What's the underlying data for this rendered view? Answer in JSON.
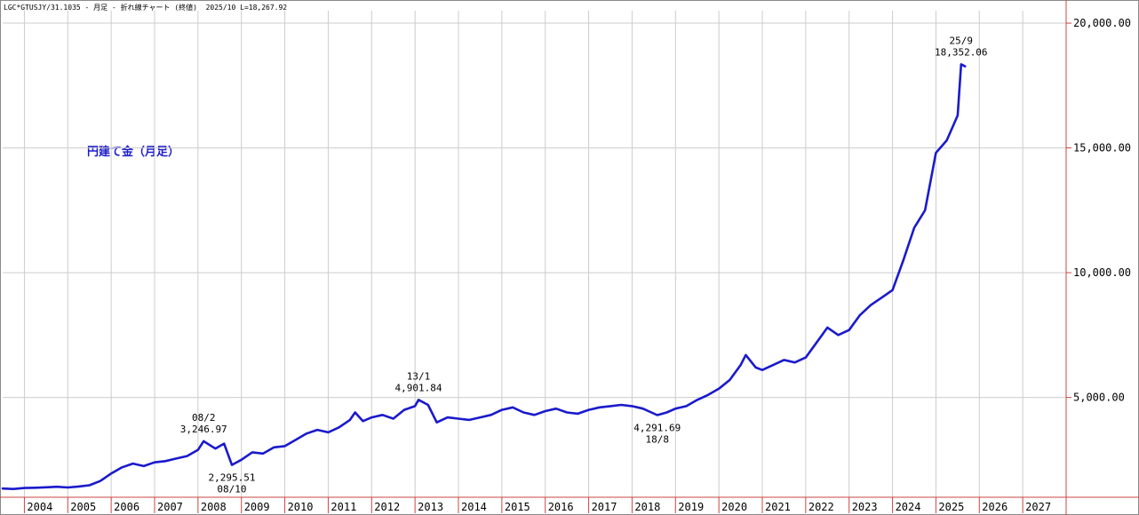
{
  "header": {
    "text": "LGC*GTUSJY/31.1035 - 月足 - 折れ線チャート (終値)  2025/10 L=18,267.92"
  },
  "chart_data": {
    "type": "line",
    "title": "円建て金（月足）",
    "xlabel": "",
    "ylabel": "",
    "x_range": [
      2003.5,
      2028.0
    ],
    "ylim": [
      1000,
      20500
    ],
    "y_ticks": [
      5000,
      10000,
      15000,
      20000
    ],
    "y_tick_labels": [
      "5,000.00",
      "10,000.00",
      "15,000.00",
      "20,000.00"
    ],
    "x_ticks": [
      "2004",
      "2005",
      "2006",
      "2007",
      "2008",
      "2009",
      "2010",
      "2011",
      "2012",
      "2013",
      "2014",
      "2015",
      "2016",
      "2017",
      "2018",
      "2019",
      "2020",
      "2021",
      "2022",
      "2023",
      "2024",
      "2025",
      "2026",
      "2027"
    ],
    "grid": true,
    "colors": {
      "line": "#1a1acc",
      "grid": "#cccccc",
      "xgrid_bottom": "#cc4444"
    },
    "series": [
      {
        "points": [
          [
            2003.5,
            1350
          ],
          [
            2003.75,
            1330
          ],
          [
            2004.0,
            1370
          ],
          [
            2004.25,
            1380
          ],
          [
            2004.5,
            1400
          ],
          [
            2004.75,
            1420
          ],
          [
            2005.0,
            1390
          ],
          [
            2005.25,
            1430
          ],
          [
            2005.5,
            1480
          ],
          [
            2005.75,
            1650
          ],
          [
            2006.0,
            1950
          ],
          [
            2006.25,
            2200
          ],
          [
            2006.5,
            2350
          ],
          [
            2006.75,
            2250
          ],
          [
            2007.0,
            2400
          ],
          [
            2007.25,
            2450
          ],
          [
            2007.5,
            2550
          ],
          [
            2007.75,
            2650
          ],
          [
            2008.0,
            2900
          ],
          [
            2008.13,
            3246.97
          ],
          [
            2008.4,
            2950
          ],
          [
            2008.6,
            3150
          ],
          [
            2008.78,
            2295.51
          ],
          [
            2009.0,
            2500
          ],
          [
            2009.25,
            2800
          ],
          [
            2009.5,
            2750
          ],
          [
            2009.75,
            3000
          ],
          [
            2010.0,
            3050
          ],
          [
            2010.25,
            3300
          ],
          [
            2010.5,
            3550
          ],
          [
            2010.75,
            3700
          ],
          [
            2011.0,
            3600
          ],
          [
            2011.25,
            3800
          ],
          [
            2011.5,
            4100
          ],
          [
            2011.62,
            4400
          ],
          [
            2011.8,
            4050
          ],
          [
            2012.0,
            4200
          ],
          [
            2012.25,
            4300
          ],
          [
            2012.5,
            4150
          ],
          [
            2012.75,
            4500
          ],
          [
            2013.0,
            4650
          ],
          [
            2013.08,
            4901.84
          ],
          [
            2013.3,
            4700
          ],
          [
            2013.5,
            4000
          ],
          [
            2013.75,
            4200
          ],
          [
            2014.0,
            4150
          ],
          [
            2014.25,
            4100
          ],
          [
            2014.5,
            4200
          ],
          [
            2014.75,
            4300
          ],
          [
            2015.0,
            4500
          ],
          [
            2015.25,
            4600
          ],
          [
            2015.5,
            4400
          ],
          [
            2015.75,
            4300
          ],
          [
            2016.0,
            4450
          ],
          [
            2016.25,
            4550
          ],
          [
            2016.5,
            4400
          ],
          [
            2016.75,
            4350
          ],
          [
            2017.0,
            4500
          ],
          [
            2017.25,
            4600
          ],
          [
            2017.5,
            4650
          ],
          [
            2017.75,
            4700
          ],
          [
            2018.0,
            4650
          ],
          [
            2018.25,
            4550
          ],
          [
            2018.58,
            4291.69
          ],
          [
            2018.8,
            4400
          ],
          [
            2019.0,
            4550
          ],
          [
            2019.25,
            4650
          ],
          [
            2019.5,
            4900
          ],
          [
            2019.75,
            5100
          ],
          [
            2020.0,
            5350
          ],
          [
            2020.25,
            5700
          ],
          [
            2020.5,
            6300
          ],
          [
            2020.62,
            6700
          ],
          [
            2020.85,
            6200
          ],
          [
            2021.0,
            6100
          ],
          [
            2021.25,
            6300
          ],
          [
            2021.5,
            6500
          ],
          [
            2021.75,
            6400
          ],
          [
            2022.0,
            6600
          ],
          [
            2022.25,
            7200
          ],
          [
            2022.5,
            7800
          ],
          [
            2022.75,
            7500
          ],
          [
            2023.0,
            7700
          ],
          [
            2023.25,
            8300
          ],
          [
            2023.5,
            8700
          ],
          [
            2023.75,
            9000
          ],
          [
            2024.0,
            9300
          ],
          [
            2024.25,
            10500
          ],
          [
            2024.5,
            11800
          ],
          [
            2024.75,
            12500
          ],
          [
            2025.0,
            14800
          ],
          [
            2025.25,
            15300
          ],
          [
            2025.5,
            16300
          ],
          [
            2025.58,
            18352.06
          ],
          [
            2025.67,
            18267.92
          ]
        ]
      }
    ],
    "annotations": [
      {
        "lines": [
          "08/2",
          "3,246.97"
        ],
        "x": 2008.13,
        "y": 3246.97,
        "position": "above"
      },
      {
        "lines": [
          "2,295.51",
          "08/10"
        ],
        "x": 2008.78,
        "y": 2295.51,
        "position": "below"
      },
      {
        "lines": [
          "13/1",
          "4,901.84"
        ],
        "x": 2013.08,
        "y": 4901.84,
        "position": "above"
      },
      {
        "lines": [
          "4,291.69",
          "18/8"
        ],
        "x": 2018.58,
        "y": 4291.69,
        "position": "below"
      },
      {
        "lines": [
          "25/9",
          "18,352.06"
        ],
        "x": 2025.58,
        "y": 18352.06,
        "position": "above"
      }
    ]
  }
}
